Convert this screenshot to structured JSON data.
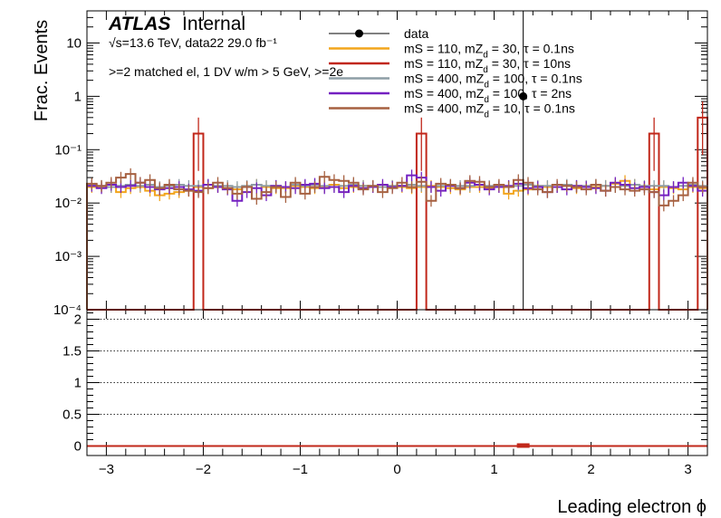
{
  "chart_data": [
    {
      "type": "histogram",
      "panel": "main",
      "title": "",
      "ylabel": "Frac. Events",
      "yscale": "log",
      "ylim": [
        0.0001,
        40
      ],
      "xlim": [
        -3.2,
        3.2
      ],
      "grid": false,
      "legend_position": "top-right",
      "atlas_label": "ATLAS",
      "atlas_status": "Internal",
      "energy_text": "√s=13.6 TeV, data22 29.0 fb⁻¹",
      "selection_text": ">=2 matched el, 1 DV w/m > 5 GeV, >=2e",
      "y_ticks": [
        {
          "value": 10,
          "label": "10"
        },
        {
          "value": 1,
          "label": "1"
        },
        {
          "value": 0.1,
          "label": "10⁻¹"
        },
        {
          "value": 0.01,
          "label": "10⁻²"
        },
        {
          "value": 0.001,
          "label": "10⁻³"
        },
        {
          "value": 0.0001,
          "label": "10⁻⁴"
        }
      ],
      "bin_edges_start": -3.2,
      "bin_width": 0.1,
      "data_point": {
        "x": 1.3,
        "y": 1.0
      },
      "series": [
        {
          "name": "data",
          "color": "#000000",
          "style": "marker"
        },
        {
          "name": "mS = 110, mZ_d = 30, τ = 0.1ns",
          "color": "#f2a51c",
          "values": [
            0.02,
            0.02,
            0.02,
            0.016,
            0.019,
            0.02,
            0.017,
            0.014,
            0.015,
            0.016,
            0.017,
            0.02,
            0.019,
            0.02,
            0.019,
            0.018,
            0.02,
            0.022,
            0.02,
            0.019,
            0.019,
            0.021,
            0.02,
            0.019,
            0.02,
            0.022,
            0.019,
            0.02,
            0.021,
            0.02,
            0.02,
            0.021,
            0.02,
            0.019,
            0.02,
            0.021,
            0.02,
            0.019,
            0.018,
            0.02,
            0.02,
            0.019,
            0.02,
            0.015,
            0.017,
            0.018,
            0.021,
            0.02,
            0.02,
            0.021,
            0.019,
            0.02,
            0.02,
            0.021,
            0.023,
            0.026,
            0.022,
            0.02,
            0.018,
            0.02,
            0.019,
            0.018,
            0.02,
            0.019
          ]
        },
        {
          "name": "mS = 110, mZ_d = 30, τ = 10ns",
          "color": "#c1271a",
          "values": [
            0.0001,
            0.0001,
            0.0001,
            0.0001,
            0.0001,
            0.0001,
            0.0001,
            0.0001,
            0.0001,
            0.0001,
            0.0001,
            0.2,
            0.0001,
            0.0001,
            0.0001,
            0.0001,
            0.0001,
            0.0001,
            0.0001,
            0.0001,
            0.0001,
            0.0001,
            0.0001,
            0.0001,
            0.0001,
            0.0001,
            0.0001,
            0.0001,
            0.0001,
            0.0001,
            0.0001,
            0.0001,
            0.0001,
            0.0001,
            0.2,
            0.0001,
            0.0001,
            0.0001,
            0.0001,
            0.0001,
            0.0001,
            0.0001,
            0.0001,
            0.0001,
            0.0001,
            0.0001,
            0.0001,
            0.0001,
            0.0001,
            0.0001,
            0.0001,
            0.0001,
            0.0001,
            0.0001,
            0.0001,
            0.0001,
            0.0001,
            0.0001,
            0.2,
            0.0001,
            0.0001,
            0.0001,
            0.0001,
            0.4
          ]
        },
        {
          "name": "mS = 400, mZ_d = 100, τ = 0.1ns",
          "color": "#8e9ea6",
          "values": [
            0.022,
            0.021,
            0.02,
            0.021,
            0.022,
            0.021,
            0.022,
            0.02,
            0.021,
            0.022,
            0.021,
            0.021,
            0.022,
            0.021,
            0.021,
            0.02,
            0.021,
            0.022,
            0.021,
            0.021,
            0.02,
            0.022,
            0.021,
            0.022,
            0.021,
            0.02,
            0.021,
            0.022,
            0.021,
            0.021,
            0.02,
            0.021,
            0.021,
            0.022,
            0.021,
            0.02,
            0.021,
            0.022,
            0.021,
            0.021,
            0.022,
            0.021,
            0.021,
            0.02,
            0.021,
            0.022,
            0.021,
            0.021,
            0.02,
            0.022,
            0.021,
            0.021,
            0.022,
            0.021,
            0.02,
            0.021,
            0.022,
            0.021,
            0.021,
            0.021,
            0.02,
            0.021,
            0.022,
            0.021
          ]
        },
        {
          "name": "mS = 400, mZ_d = 100, τ = 2ns",
          "color": "#7420c1",
          "values": [
            0.021,
            0.019,
            0.022,
            0.02,
            0.021,
            0.024,
            0.02,
            0.018,
            0.019,
            0.02,
            0.018,
            0.017,
            0.022,
            0.02,
            0.018,
            0.011,
            0.016,
            0.019,
            0.014,
            0.021,
            0.02,
            0.019,
            0.022,
            0.023,
            0.019,
            0.02,
            0.016,
            0.021,
            0.019,
            0.02,
            0.022,
            0.02,
            0.021,
            0.033,
            0.03,
            0.02,
            0.017,
            0.021,
            0.019,
            0.024,
            0.022,
            0.018,
            0.02,
            0.021,
            0.023,
            0.019,
            0.02,
            0.016,
            0.02,
            0.018,
            0.021,
            0.02,
            0.019,
            0.017,
            0.024,
            0.022,
            0.019,
            0.02,
            0.016,
            0.014,
            0.02,
            0.024,
            0.021,
            0.017
          ]
        },
        {
          "name": "mS = 400, mZ_d = 10, τ = 0.1ns",
          "color": "#a66040",
          "values": [
            0.023,
            0.021,
            0.024,
            0.03,
            0.035,
            0.024,
            0.027,
            0.019,
            0.022,
            0.018,
            0.017,
            0.016,
            0.019,
            0.024,
            0.019,
            0.015,
            0.02,
            0.012,
            0.016,
            0.02,
            0.013,
            0.024,
            0.015,
            0.02,
            0.031,
            0.027,
            0.026,
            0.024,
            0.018,
            0.021,
            0.016,
            0.019,
            0.024,
            0.02,
            0.025,
            0.011,
            0.023,
            0.022,
            0.019,
            0.026,
            0.025,
            0.02,
            0.022,
            0.02,
            0.027,
            0.024,
            0.018,
            0.016,
            0.022,
            0.021,
            0.02,
            0.018,
            0.022,
            0.017,
            0.02,
            0.018,
            0.017,
            0.018,
            0.016,
            0.009,
            0.011,
            0.014,
            0.024,
            0.02
          ]
        }
      ]
    },
    {
      "type": "histogram",
      "panel": "ratio",
      "xlabel": "Leading electron ϕ",
      "ylabel": "",
      "ylim": [
        -0.15,
        2.15
      ],
      "xlim": [
        -3.2,
        3.2
      ],
      "grid": "dotted horizontal",
      "y_ticks": [
        {
          "value": 0,
          "label": "0"
        },
        {
          "value": 0.5,
          "label": "0.5"
        },
        {
          "value": 1,
          "label": "1"
        },
        {
          "value": 1.5,
          "label": "1.5"
        },
        {
          "value": 2,
          "label": "2"
        }
      ],
      "x_ticks": [
        {
          "value": -3,
          "label": "−3"
        },
        {
          "value": -2,
          "label": "−2"
        },
        {
          "value": -1,
          "label": "−1"
        },
        {
          "value": 0,
          "label": "0"
        },
        {
          "value": 1,
          "label": "1"
        },
        {
          "value": 2,
          "label": "2"
        },
        {
          "value": 3,
          "label": "3"
        }
      ],
      "ratio_value": 0,
      "ratio_marker_x": 1.3
    }
  ]
}
